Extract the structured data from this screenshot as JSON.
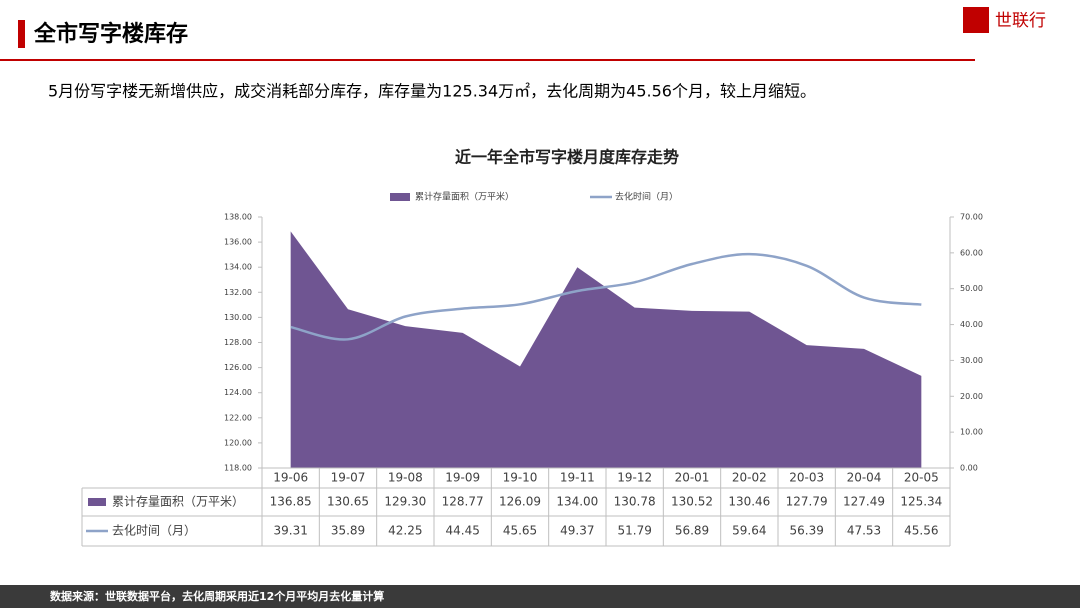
{
  "header": {
    "title": "全市写字楼库存",
    "logo": "世联行"
  },
  "summary": "5月份写字楼无新增供应，成交消耗部分库存，库存量为125.34万㎡，去化周期为45.56个月，较上月缩短。",
  "footer": "数据来源：世联数据平台，去化周期采用近12个月平均月去化量计算",
  "chart_data": {
    "type": "area",
    "title": "近一年全市写字楼月度库存走势",
    "categories": [
      "19-06",
      "19-07",
      "19-08",
      "19-09",
      "19-10",
      "19-11",
      "19-12",
      "20-01",
      "20-02",
      "20-03",
      "20-04",
      "20-05"
    ],
    "series": [
      {
        "name": "累计存量面积（万平米）",
        "color": "#6f5592",
        "type": "area",
        "values": [
          136.85,
          130.65,
          129.3,
          128.77,
          126.09,
          134,
          130.78,
          130.52,
          130.46,
          127.79,
          127.49,
          125.34
        ],
        "value_labels": [
          "136.85",
          "130.65",
          "129.30",
          "128.77",
          "126.09",
          "134.00",
          "130.78",
          "130.52",
          "130.46",
          "127.79",
          "127.49",
          "125.34"
        ]
      },
      {
        "name": "去化时间（月）",
        "color": "#8ea3c8",
        "type": "line",
        "axis": "y2",
        "values": [
          39.31,
          35.89,
          42.25,
          44.45,
          45.65,
          49.37,
          51.79,
          56.89,
          59.64,
          56.39,
          47.53,
          45.56
        ],
        "value_labels": [
          "39.31",
          "35.89",
          "42.25",
          "44.45",
          "45.65",
          "49.37",
          "51.79",
          "56.89",
          "59.64",
          "56.39",
          "47.53",
          "45.56"
        ]
      }
    ],
    "ylim": [
      118,
      138
    ],
    "yticks": [
      {
        "value": 118,
        "label": "118.00"
      },
      {
        "value": 120,
        "label": "120.00"
      },
      {
        "value": 122,
        "label": "122.00"
      },
      {
        "value": 124,
        "label": "124.00"
      },
      {
        "value": 126,
        "label": "126.00"
      },
      {
        "value": 128,
        "label": "128.00"
      },
      {
        "value": 130,
        "label": "130.00"
      },
      {
        "value": 132,
        "label": "132.00"
      },
      {
        "value": 134,
        "label": "134.00"
      },
      {
        "value": 136,
        "label": "136.00"
      },
      {
        "value": 138,
        "label": "138.00"
      }
    ],
    "y2lim": [
      0,
      70
    ],
    "y2ticks": [
      {
        "value": 0,
        "label": "0.00"
      },
      {
        "value": 10,
        "label": "10.00"
      },
      {
        "value": 20,
        "label": "20.00"
      },
      {
        "value": 30,
        "label": "30.00"
      },
      {
        "value": 40,
        "label": "40.00"
      },
      {
        "value": 50,
        "label": "50.00"
      },
      {
        "value": 60,
        "label": "60.00"
      },
      {
        "value": 70,
        "label": "70.00"
      }
    ]
  }
}
